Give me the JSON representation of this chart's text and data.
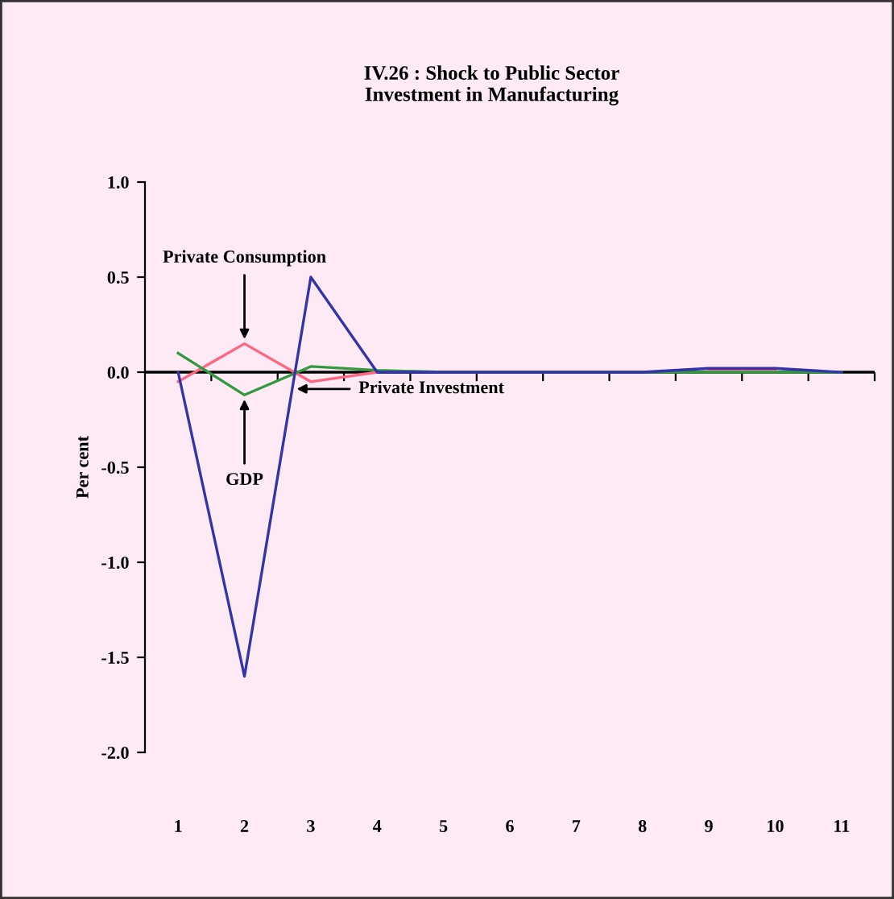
{
  "chart_data": {
    "type": "line",
    "title": "IV.26 : Shock to Public Sector\nInvestment in Manufacturing",
    "ylabel": "Per cent",
    "categories": [
      "1",
      "2",
      "3",
      "4",
      "5",
      "6",
      "7",
      "8",
      "9",
      "10",
      "11"
    ],
    "series": [
      {
        "name": "Private Consumption",
        "color": "#ff6680",
        "values": [
          -0.05,
          0.15,
          -0.05,
          0,
          null,
          null,
          null,
          null,
          0.01,
          0.01,
          null
        ]
      },
      {
        "name": "GDP",
        "color": "#33993f",
        "values": [
          0.1,
          -0.12,
          0.03,
          0.01,
          0,
          0,
          0,
          0,
          0,
          0,
          0
        ]
      },
      {
        "name": "Private Investment",
        "color": "#3333aa",
        "values": [
          0,
          -1.6,
          0.5,
          0,
          0,
          0,
          0,
          0,
          0.02,
          0.02,
          0
        ]
      }
    ],
    "ref_lines": [
      {
        "axis": "y",
        "value": 0,
        "color": "#000000"
      }
    ],
    "ylim": [
      -2.0,
      1.0
    ],
    "yticks": [
      {
        "value": -2.0,
        "label": "-2.0"
      },
      {
        "value": -1.5,
        "label": "-1.5"
      },
      {
        "value": -1.0,
        "label": "-1.0"
      },
      {
        "value": -0.5,
        "label": "-0.5"
      },
      {
        "value": 0.0,
        "label": "0.0"
      },
      {
        "value": 0.5,
        "label": "0.5"
      },
      {
        "value": 1.0,
        "label": "1.0"
      }
    ],
    "grid": false,
    "legend": false,
    "marker": "none",
    "line_style": "solid"
  }
}
